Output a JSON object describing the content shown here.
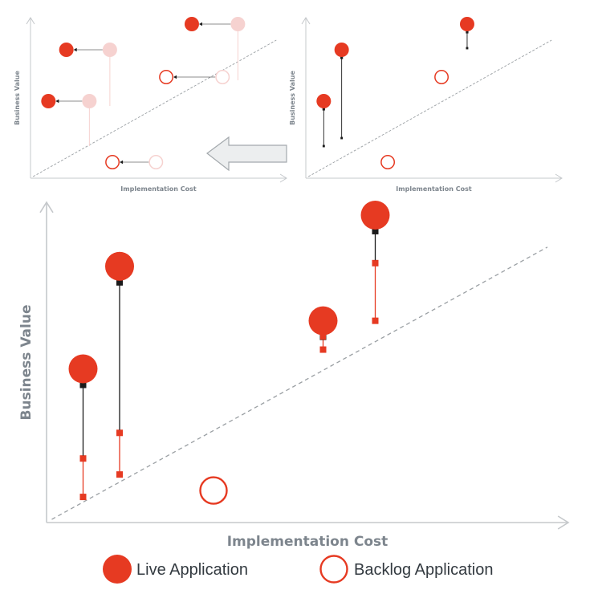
{
  "colors": {
    "live": "#e63a22",
    "live_faded": "#f6d2d0",
    "backlog": "#e63a22",
    "backlog_faded": "#f6d2d0",
    "axis": "#c5c8cb",
    "axis_label": "#7d858d",
    "connector": "#1b1b1b",
    "arrow_fill": "#eceeef",
    "arrow_stroke": "#a4a9ad",
    "diagonal": "#9a9fa3"
  },
  "chart_data": [
    {
      "type": "scatter",
      "panel": "top-left",
      "xlabel": "Implementation Cost",
      "ylabel": "Business Value",
      "diagonal": true,
      "points": [
        {
          "kind": "live",
          "x": 0.07,
          "y": 0.48
        },
        {
          "kind": "live_faded",
          "x": 0.23,
          "y": 0.48
        },
        {
          "kind": "live",
          "x": 0.14,
          "y": 0.8
        },
        {
          "kind": "live_faded",
          "x": 0.31,
          "y": 0.8
        },
        {
          "kind": "live",
          "x": 0.63,
          "y": 0.96
        },
        {
          "kind": "live_faded",
          "x": 0.81,
          "y": 0.96
        },
        {
          "kind": "backlog",
          "x": 0.53,
          "y": 0.63
        },
        {
          "kind": "backlog_faded",
          "x": 0.75,
          "y": 0.63
        },
        {
          "kind": "backlog",
          "x": 0.32,
          "y": 0.1
        },
        {
          "kind": "backlog_faded",
          "x": 0.49,
          "y": 0.1
        }
      ]
    },
    {
      "type": "scatter",
      "panel": "top-right",
      "xlabel": "Implementation Cost",
      "ylabel": "Business Value",
      "diagonal": true,
      "points": [
        {
          "kind": "live",
          "x": 0.07,
          "y": 0.48,
          "from_y": 0.2
        },
        {
          "kind": "live",
          "x": 0.14,
          "y": 0.8,
          "from_y": 0.25
        },
        {
          "kind": "live",
          "x": 0.63,
          "y": 0.96,
          "from_y": 0.81
        },
        {
          "kind": "backlog",
          "x": 0.53,
          "y": 0.63
        },
        {
          "kind": "backlog",
          "x": 0.32,
          "y": 0.1
        }
      ]
    },
    {
      "type": "scatter",
      "panel": "bottom",
      "xlabel": "Implementation Cost",
      "ylabel": "Business Value",
      "diagonal": true,
      "points": [
        {
          "kind": "live",
          "x": 0.07,
          "y": 0.48,
          "from_y": 0.2,
          "baseline_y": 0.08
        },
        {
          "kind": "live",
          "x": 0.14,
          "y": 0.8,
          "from_y": 0.28,
          "baseline_y": 0.15
        },
        {
          "kind": "live",
          "x": 0.53,
          "y": 0.63,
          "from_y": 0.58,
          "baseline_y": 0.54
        },
        {
          "kind": "live",
          "x": 0.63,
          "y": 0.96,
          "from_y": 0.81,
          "baseline_y": 0.63
        },
        {
          "kind": "backlog",
          "x": 0.32,
          "y": 0.1
        }
      ]
    }
  ],
  "transition_arrow": {
    "direction": "left"
  },
  "legend": {
    "live_label": "Live Application",
    "backlog_label": "Backlog Application"
  }
}
